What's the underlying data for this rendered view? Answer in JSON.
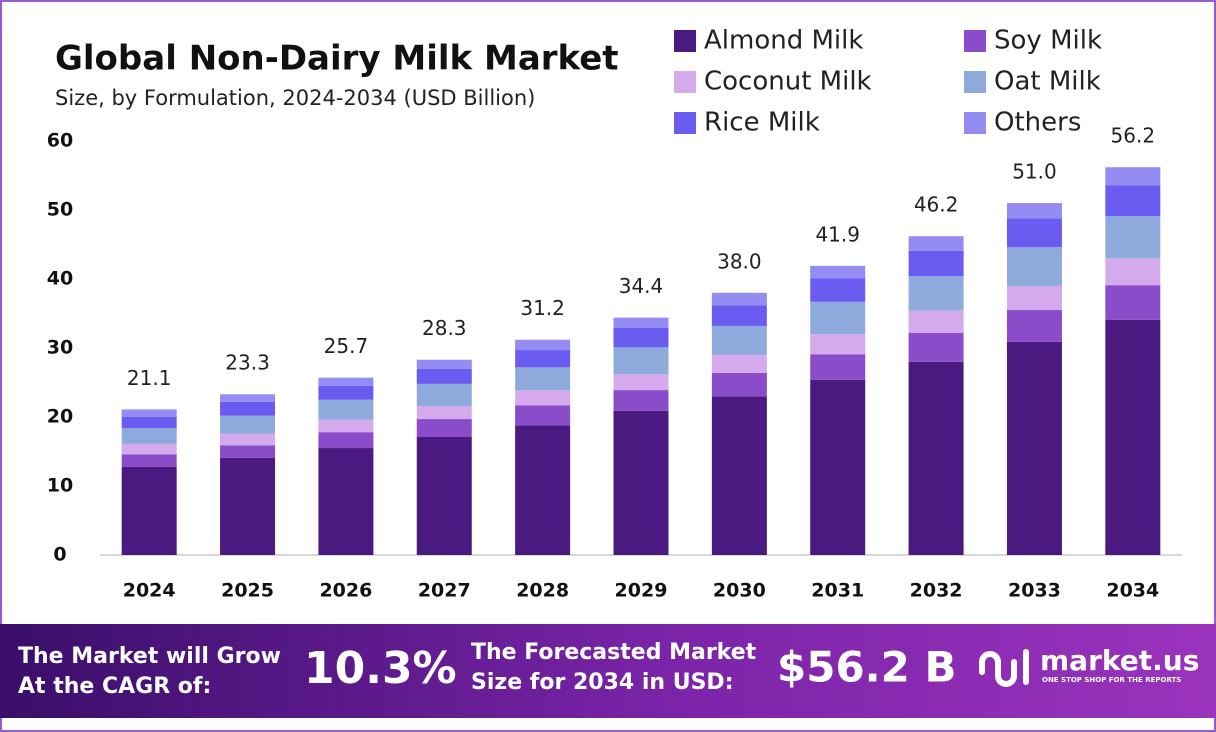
{
  "chart_data": {
    "type": "stacked_bar",
    "title": "Global Non-Dairy Milk Market",
    "subtitle": "Size, by Formulation, 2024-2034 (USD Billion)",
    "categories": [
      "2024",
      "2025",
      "2026",
      "2027",
      "2028",
      "2029",
      "2030",
      "2031",
      "2032",
      "2033",
      "2034"
    ],
    "series": [
      {
        "name": "Almond Milk",
        "color": "#4a1a80",
        "values": [
          12.8,
          14.1,
          15.5,
          17.1,
          18.8,
          20.9,
          23.0,
          25.4,
          28.0,
          30.9,
          34.1
        ]
      },
      {
        "name": "Soy Milk",
        "color": "#8a4cc8",
        "values": [
          1.8,
          1.8,
          2.3,
          2.6,
          2.9,
          3.0,
          3.4,
          3.7,
          4.2,
          4.6,
          5.0
        ]
      },
      {
        "name": "Coconut Milk",
        "color": "#d5aaec",
        "values": [
          1.5,
          1.7,
          1.8,
          1.9,
          2.2,
          2.3,
          2.6,
          2.9,
          3.2,
          3.5,
          3.9
        ]
      },
      {
        "name": "Oat Milk",
        "color": "#8eaadc",
        "values": [
          2.3,
          2.6,
          2.9,
          3.2,
          3.3,
          3.9,
          4.2,
          4.7,
          5.0,
          5.6,
          6.1
        ]
      },
      {
        "name": "Rice Milk",
        "color": "#6a5cf0",
        "values": [
          1.6,
          2.0,
          2.0,
          2.2,
          2.5,
          2.8,
          3.0,
          3.4,
          3.7,
          4.2,
          4.5
        ]
      },
      {
        "name": "Others",
        "color": "#958cf3",
        "values": [
          1.1,
          1.1,
          1.2,
          1.3,
          1.5,
          1.5,
          1.8,
          1.8,
          2.1,
          2.2,
          2.6
        ]
      }
    ],
    "totals": [
      21.1,
      23.3,
      25.7,
      28.3,
      31.2,
      34.4,
      38.0,
      41.9,
      46.2,
      51.0,
      56.2
    ],
    "total_labels": [
      "21.1",
      "23.3",
      "25.7",
      "28.3",
      "31.2",
      "34.4",
      "38.0",
      "41.9",
      "46.2",
      "51.0",
      "56.2"
    ],
    "ylim": [
      0,
      60
    ],
    "yticks": [
      0,
      10,
      20,
      30,
      40,
      50,
      60
    ]
  },
  "footer": {
    "grow_line1": "The Market will Grow",
    "grow_line2": "At the CAGR of:",
    "cagr": "10.3%",
    "forecast_line1": "The Forecasted Market",
    "forecast_line2": "Size for 2034 in USD:",
    "forecast_value": "$56.2 B",
    "brand": "market.us",
    "tagline": "ONE STOP SHOP FOR THE REPORTS"
  }
}
